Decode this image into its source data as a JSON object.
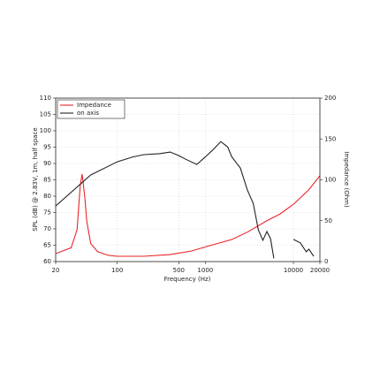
{
  "chart_data": {
    "type": "line",
    "xlabel": "Frequency (Hz)",
    "ylabel": "SPL (dB) @ 2.83V, 1m, half space",
    "y2label": "Impedance (Ohm)",
    "xscale": "log",
    "grid": true,
    "legend": "upper left",
    "xlim": [
      20,
      20000
    ],
    "xticks": [
      20,
      100,
      500,
      1000,
      10000,
      20000
    ],
    "ylim": [
      60,
      110
    ],
    "yticks": [
      60,
      65,
      70,
      75,
      80,
      85,
      90,
      95,
      100,
      105,
      110
    ],
    "y2lim": [
      0,
      200
    ],
    "y2ticks": [
      0,
      50,
      100,
      150,
      200
    ],
    "series": [
      {
        "name": "Impedance",
        "color": "#e8262a",
        "axis": "y2",
        "x": [
          20,
          30,
          35,
          38,
          40,
          43,
          45,
          50,
          60,
          80,
          100,
          200,
          400,
          700,
          1000,
          2000,
          3000,
          5000,
          7000,
          10000,
          15000,
          20000
        ],
        "values": [
          9.7,
          17,
          39,
          93,
          107,
          77,
          50,
          22,
          12,
          7.6,
          6.5,
          6.5,
          8.6,
          13,
          18,
          27,
          36,
          50,
          58,
          70,
          88,
          105
        ]
      },
      {
        "name": "on axis",
        "color": "#222222",
        "axis": "y",
        "x": [
          20,
          50,
          100,
          150,
          200,
          300,
          400,
          500,
          600,
          800,
          1000,
          1200,
          1500,
          1800,
          2000,
          2500,
          3000,
          3500,
          4000,
          4500,
          5000,
          5500,
          6000,
          7000,
          8000,
          10000,
          12000,
          14000,
          15000,
          17000,
          18000
        ],
        "values": [
          77,
          86.5,
          90.5,
          92,
          92.7,
          93,
          93.5,
          92.4,
          91.3,
          89.7,
          92,
          94,
          96.7,
          95,
          92,
          88.6,
          81.9,
          77.8,
          69.7,
          66.5,
          69.2,
          67,
          61,
          null,
          null,
          66.8,
          65.7,
          63,
          63.8,
          61.6,
          null
        ]
      }
    ]
  }
}
